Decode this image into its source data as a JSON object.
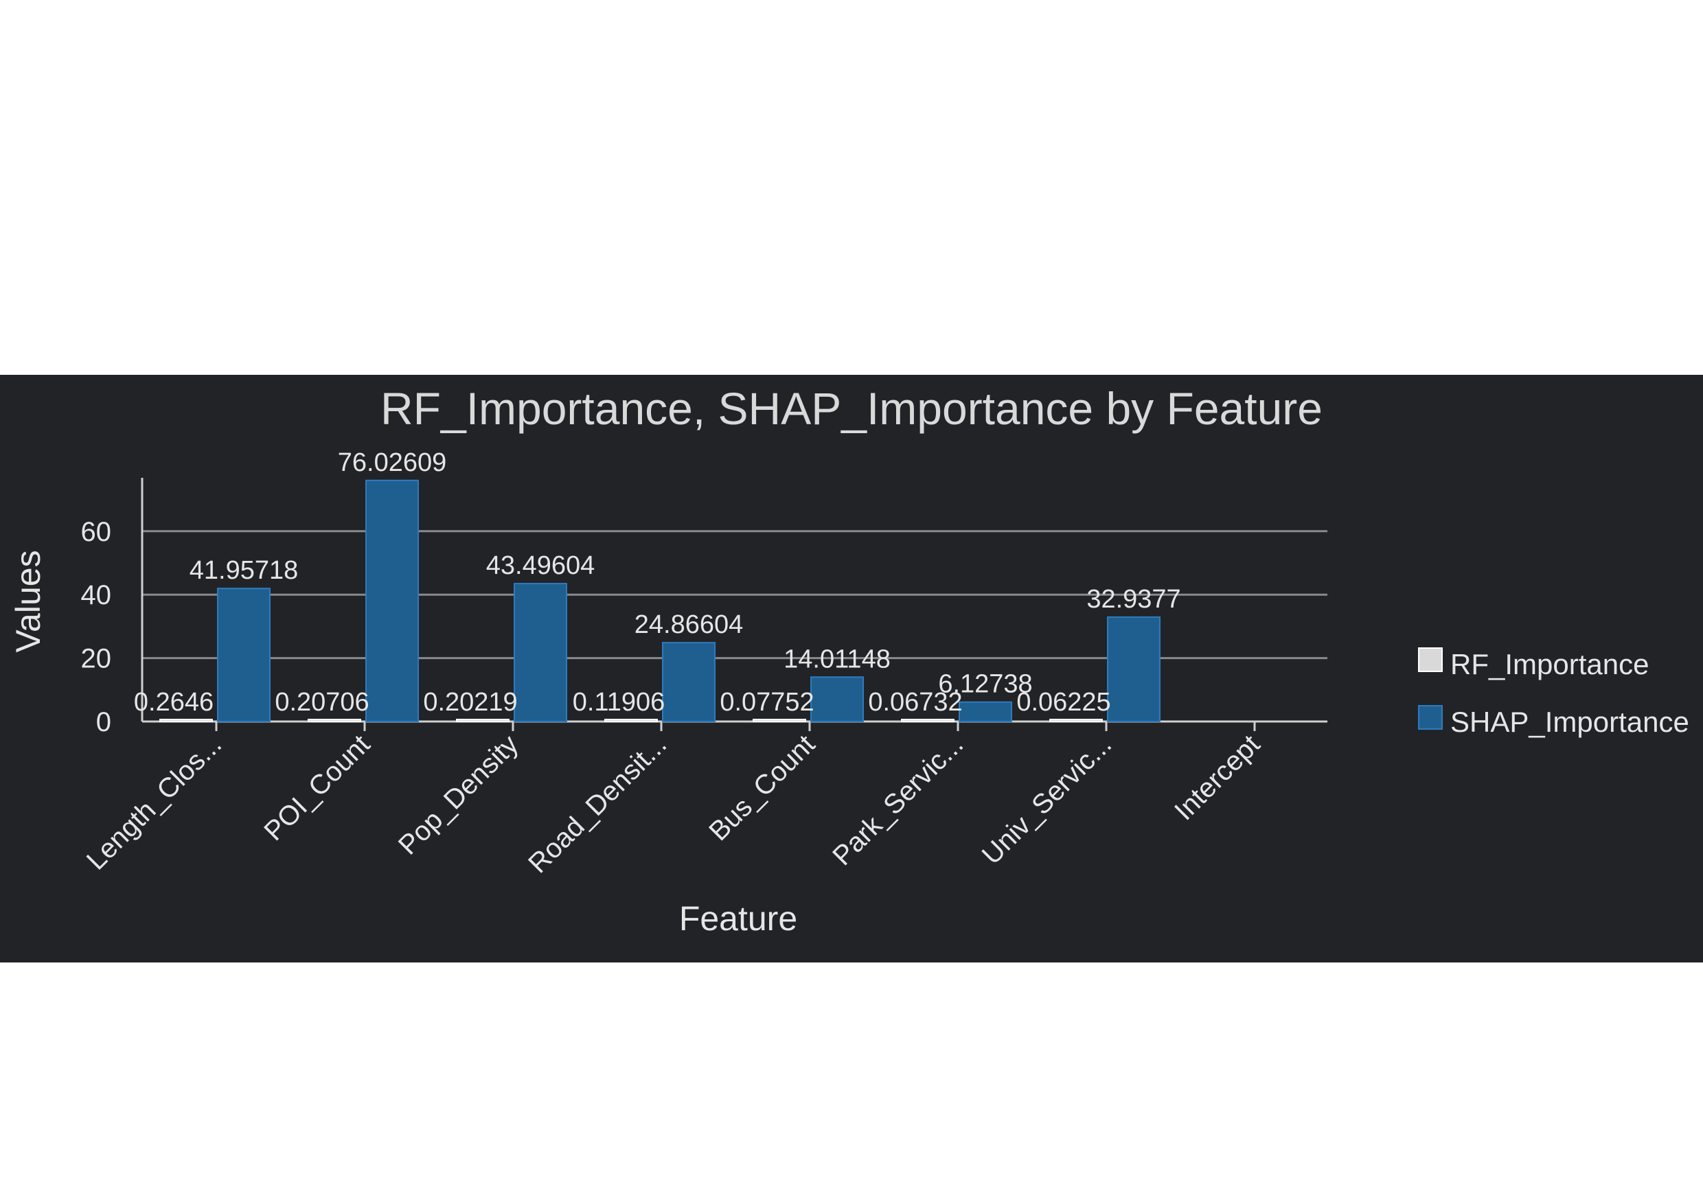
{
  "chart_data": {
    "type": "bar",
    "title": "RF_Importance, SHAP_Importance by Feature",
    "xlabel": "Feature",
    "ylabel": "Values",
    "categories": [
      "Length_Clos...",
      "POI_Count",
      "Pop_Density",
      "Road_Densit...",
      "Bus_Count",
      "Park_Servic...",
      "Univ_Servic...",
      "Intercept"
    ],
    "series": [
      {
        "name": "RF_Importance",
        "color": "#d9d9d9",
        "values": [
          0.2646,
          0.20706,
          0.20219,
          0.11906,
          0.07752,
          0.06732,
          0.06225,
          null
        ],
        "labels": [
          "0.2646",
          "0.20706",
          "0.20219",
          "0.11906",
          "0.07752",
          "0.06732",
          "0.06225",
          ""
        ]
      },
      {
        "name": "SHAP_Importance",
        "color": "#1f5f8f",
        "values": [
          41.95718,
          76.02609,
          43.49604,
          24.86604,
          14.01148,
          6.12738,
          32.9377,
          null
        ],
        "labels": [
          "41.95718",
          "76.02609",
          "43.49604",
          "24.86604",
          "14.01148",
          "6.12738",
          "32.9377",
          ""
        ]
      }
    ],
    "yticks": [
      "0",
      "20",
      "40",
      "60"
    ],
    "ylim": [
      0,
      76
    ],
    "grid": true,
    "legend_position": "right"
  }
}
